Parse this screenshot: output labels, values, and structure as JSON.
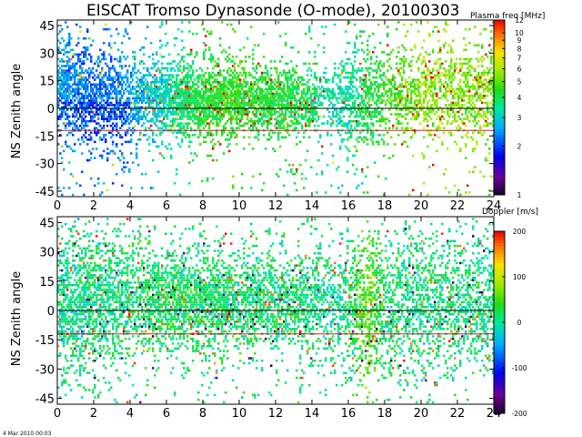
{
  "title": "EISCAT Tromso Dynasonde (O-mode),  20100303",
  "stamp": "4 Mar 2010 00:03",
  "chart_data": [
    {
      "type": "heatmap",
      "ylabel": "NS Zenith angle",
      "xlim": [
        0,
        24
      ],
      "ylim": [
        -48,
        48
      ],
      "x_ticks": [
        0,
        2,
        4,
        6,
        8,
        10,
        12,
        14,
        16,
        18,
        20,
        22,
        24
      ],
      "y_ticks": [
        45,
        30,
        15,
        0,
        -15,
        -30,
        -45
      ],
      "reference_lines": [
        {
          "y": 0,
          "color": "#000000"
        },
        {
          "y": -12,
          "color": "#cc2222"
        }
      ],
      "colorbar": {
        "title": "Plasma freq [MHz]",
        "scale": "log",
        "range": [
          1,
          12
        ],
        "ticks": [
          12,
          10,
          9,
          8,
          7,
          6,
          5,
          4,
          3,
          2,
          1
        ]
      },
      "profile": {
        "hours": [
          0,
          1,
          2,
          3,
          4,
          5,
          6,
          7,
          8,
          9,
          10,
          11,
          12,
          13,
          14,
          15,
          16,
          17,
          18,
          19,
          20,
          21,
          22,
          23,
          24
        ],
        "value_mhz": [
          2.6,
          2.4,
          2.2,
          2.3,
          2.5,
          2.8,
          3.3,
          3.8,
          4.2,
          4.5,
          4.5,
          4.3,
          4.3,
          4.1,
          3.8,
          3.3,
          3.4,
          4.0,
          4.5,
          5.2,
          5.5,
          5.6,
          5.5,
          5.4,
          5.4
        ],
        "center_deg": [
          12,
          8,
          5,
          4,
          5,
          6,
          6,
          5,
          4,
          4,
          5,
          5,
          4,
          3,
          3,
          5,
          4,
          4,
          7,
          8,
          8,
          9,
          9,
          9,
          9
        ],
        "halfwidth_deg": [
          26,
          26,
          25,
          24,
          22,
          20,
          20,
          20,
          20,
          20,
          19,
          18,
          18,
          18,
          16,
          18,
          22,
          24,
          22,
          22,
          23,
          24,
          24,
          24,
          24
        ],
        "coverage": [
          0.8,
          0.75,
          0.7,
          0.7,
          0.55,
          0.75,
          0.8,
          0.85,
          0.85,
          0.85,
          0.85,
          0.8,
          0.8,
          0.75,
          0.6,
          0.35,
          0.55,
          0.6,
          0.45,
          0.45,
          0.45,
          0.45,
          0.5,
          0.5,
          0.5
        ]
      }
    },
    {
      "type": "heatmap",
      "ylabel": "NS Zenith angle",
      "xlim": [
        0,
        24
      ],
      "ylim": [
        -48,
        48
      ],
      "x_ticks": [
        0,
        2,
        4,
        6,
        8,
        10,
        12,
        14,
        16,
        18,
        20,
        22,
        24
      ],
      "y_ticks": [
        45,
        30,
        15,
        0,
        -15,
        -30,
        -45
      ],
      "reference_lines": [
        {
          "y": 0,
          "color": "#000000"
        },
        {
          "y": -12,
          "color": "#cc2222"
        }
      ],
      "colorbar": {
        "title": "Doppler [m/s]",
        "scale": "linear",
        "range": [
          -200,
          200
        ],
        "ticks": [
          200,
          100,
          0,
          -100,
          -200
        ]
      },
      "profile": {
        "hours": [
          0,
          1,
          2,
          3,
          4,
          5,
          6,
          7,
          8,
          9,
          10,
          11,
          12,
          13,
          14,
          15,
          16,
          17,
          18,
          19,
          20,
          21,
          22,
          23,
          24
        ],
        "value_ms": [
          0,
          5,
          10,
          10,
          15,
          20,
          20,
          20,
          15,
          15,
          15,
          15,
          15,
          15,
          10,
          0,
          10,
          60,
          20,
          10,
          10,
          10,
          10,
          10,
          10
        ],
        "center_deg": [
          5,
          5,
          5,
          5,
          5,
          5,
          5,
          5,
          5,
          5,
          5,
          5,
          5,
          5,
          5,
          3,
          3,
          3,
          3,
          4,
          4,
          4,
          4,
          4,
          4
        ],
        "halfwidth_deg": [
          34,
          32,
          32,
          30,
          26,
          24,
          24,
          24,
          24,
          24,
          22,
          22,
          22,
          22,
          24,
          26,
          30,
          34,
          30,
          32,
          32,
          32,
          30,
          30,
          30
        ],
        "coverage": [
          0.6,
          0.6,
          0.6,
          0.6,
          0.5,
          0.65,
          0.65,
          0.7,
          0.7,
          0.7,
          0.7,
          0.65,
          0.65,
          0.6,
          0.55,
          0.4,
          0.5,
          0.6,
          0.45,
          0.45,
          0.45,
          0.45,
          0.45,
          0.45,
          0.45
        ]
      }
    }
  ]
}
